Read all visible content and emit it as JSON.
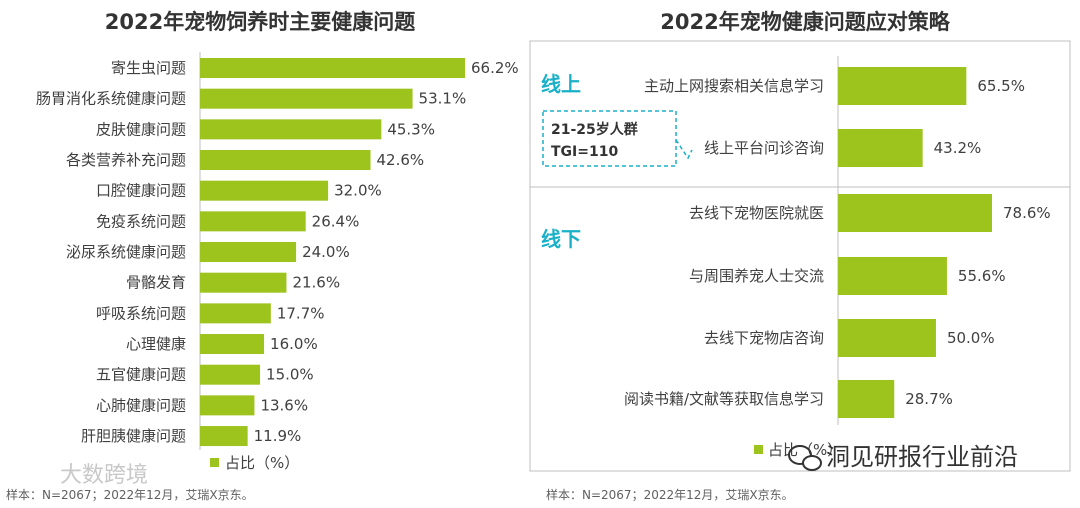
{
  "chart_data": [
    {
      "type": "bar",
      "orientation": "horizontal",
      "title": "2022年宠物饲养时主要健康问题",
      "categories": [
        "寄生虫问题",
        "肠胃消化系统健康问题",
        "皮肤健康问题",
        "各类营养补充问题",
        "口腔健康问题",
        "免疫系统问题",
        "泌尿系统健康问题",
        "骨骼发育",
        "呼吸系统问题",
        "心理健康",
        "五官健康问题",
        "心肺健康问题",
        "肝胆胰健康问题"
      ],
      "values": [
        66.2,
        53.1,
        45.3,
        42.6,
        32.0,
        26.4,
        24.0,
        21.6,
        17.7,
        16.0,
        15.0,
        13.6,
        11.9
      ],
      "value_labels": [
        "66.2%",
        "53.1%",
        "45.3%",
        "42.6%",
        "32.0%",
        "26.4%",
        "24.0%",
        "21.6%",
        "17.7%",
        "16.0%",
        "15.0%",
        "13.6%",
        "11.9%"
      ],
      "legend": "占比（%）",
      "legend_placement": "bottom",
      "grid": false,
      "xlim": [
        0,
        80
      ],
      "bar_color": "#9dc31d",
      "source": "样本：N=2067；2022年12月，艾瑞X京东。"
    },
    {
      "type": "bar",
      "orientation": "horizontal",
      "title": "2022年宠物健康问题应对策略",
      "groups": [
        {
          "name": "线上",
          "categories": [
            "主动上网搜索相关信息学习",
            "线上平台问诊咨询"
          ],
          "values": [
            65.5,
            43.2
          ],
          "value_labels": [
            "65.5%",
            "43.2%"
          ]
        },
        {
          "name": "线下",
          "categories": [
            "去线下宠物医院就医",
            "与周围养宠人士交流",
            "去线下宠物店咨询",
            "阅读书籍/文献等获取信息学习"
          ],
          "values": [
            78.6,
            55.6,
            50.0,
            28.7
          ],
          "value_labels": [
            "78.6%",
            "55.6%",
            "50.0%",
            "28.7%"
          ]
        }
      ],
      "callout": {
        "line1": "21-25岁人群",
        "line2": "TGI=110"
      },
      "legend": "占比（%）",
      "legend_placement": "bottom",
      "grid": false,
      "xlim": [
        0,
        100
      ],
      "bar_color": "#9dc31d",
      "accent_color": "#1ab0c8",
      "source": "样本：N=2067；2022年12月，艾瑞X京东。"
    }
  ],
  "watermarks": {
    "left": "大数跨境",
    "right": "洞见研报行业前沿"
  }
}
